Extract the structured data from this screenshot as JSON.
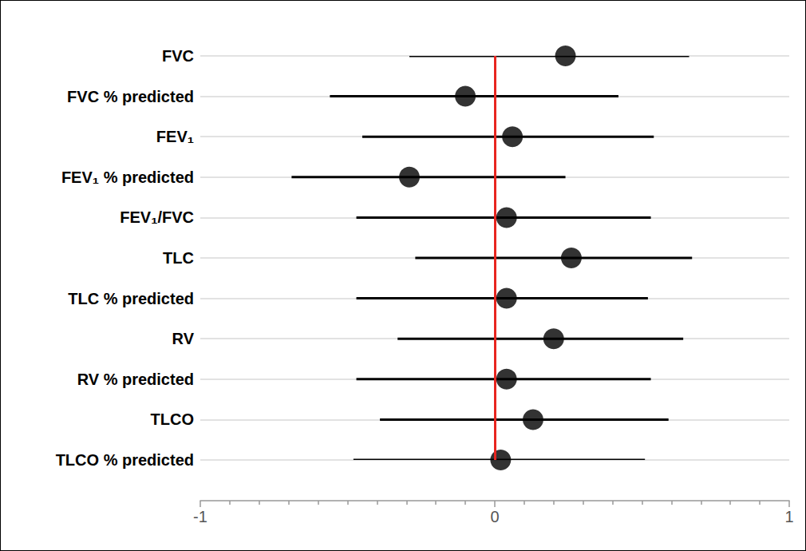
{
  "chart_data": {
    "type": "scatter",
    "orientation": "horizontal",
    "grid": true,
    "categories": [
      "FVC",
      "FVC % predicted",
      "FEV₁",
      "FEV₁ % predicted",
      "FEV₁/FVC",
      "TLC",
      "TLC % predicted",
      "RV",
      "RV % predicted",
      "TLCO",
      "TLCO % predicted"
    ],
    "values": [
      0.24,
      -0.1,
      0.06,
      -0.29,
      0.04,
      0.26,
      0.04,
      0.2,
      0.04,
      0.13,
      0.02
    ],
    "ci_lower": [
      -0.29,
      -0.56,
      -0.45,
      -0.69,
      -0.47,
      -0.27,
      -0.47,
      -0.33,
      -0.47,
      -0.39,
      -0.48
    ],
    "ci_upper": [
      0.66,
      0.42,
      0.54,
      0.24,
      0.53,
      0.67,
      0.52,
      0.64,
      0.53,
      0.59,
      0.51
    ],
    "color": "#000000",
    "marker": "circle",
    "ref_line": {
      "value": 0,
      "color": "#e8251f"
    },
    "xlim": [
      -1,
      1
    ],
    "xticks": [
      -1,
      0,
      1
    ]
  }
}
